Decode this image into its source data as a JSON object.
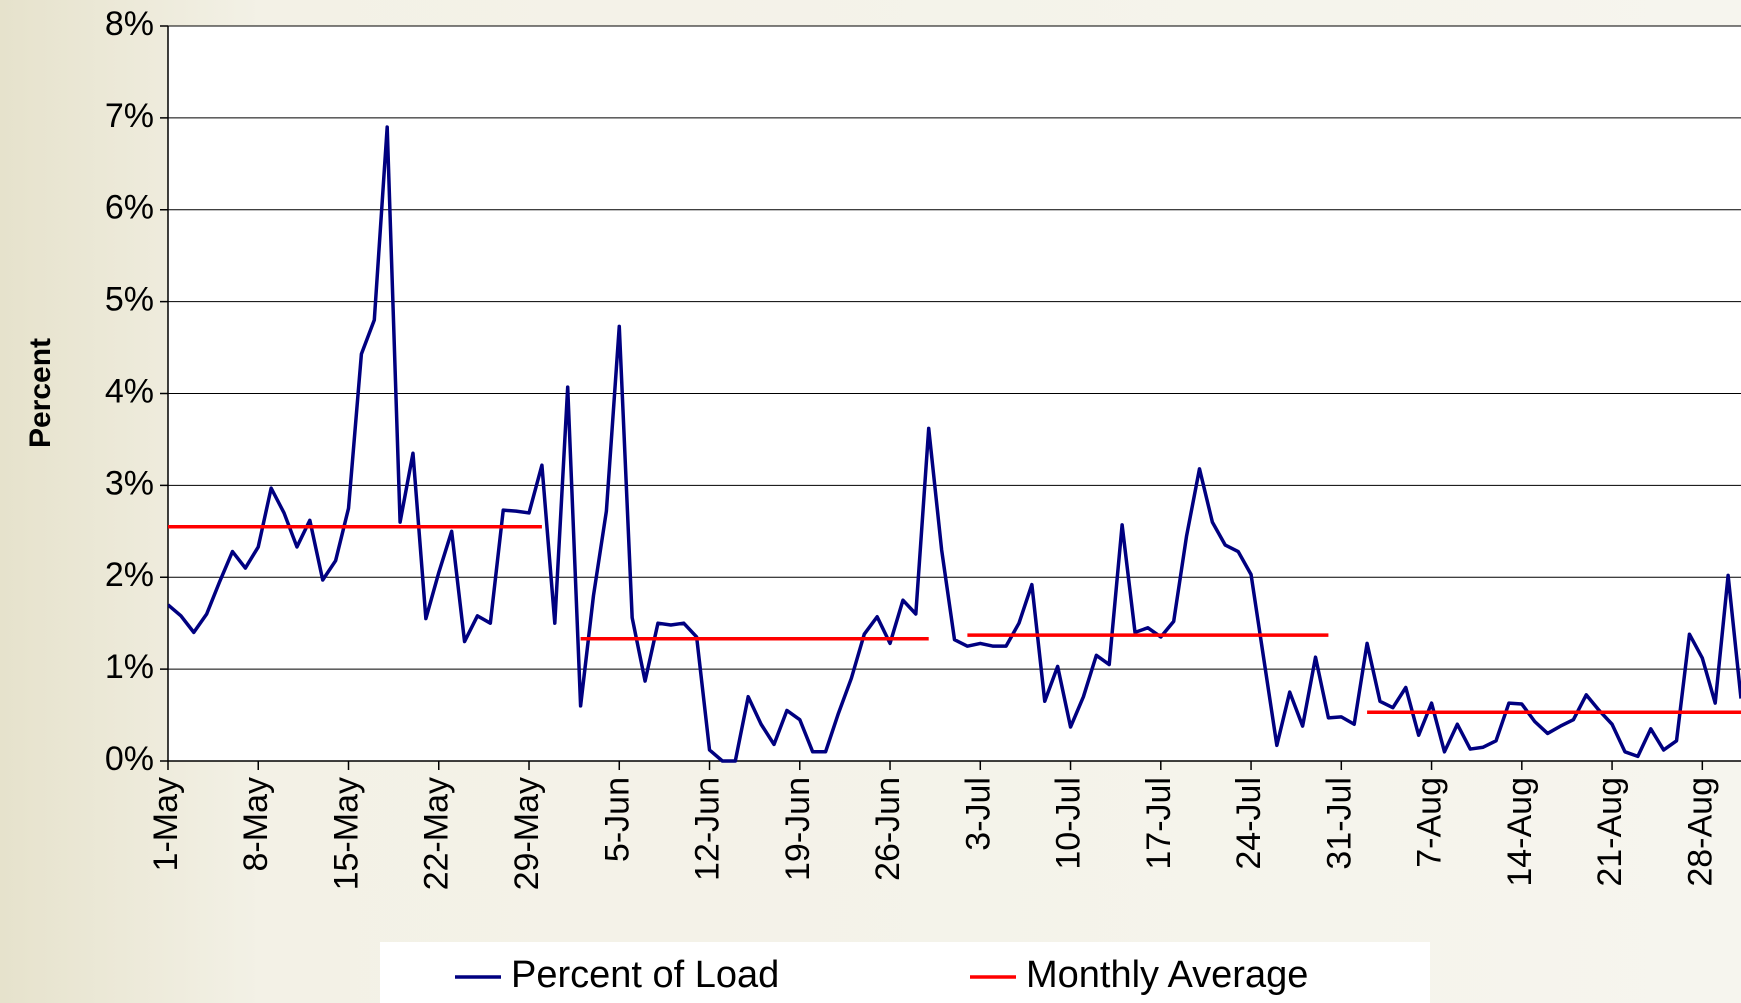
{
  "chart_data": {
    "type": "line",
    "y_label": "Percent",
    "categories": [
      "1-May",
      null,
      null,
      null,
      null,
      null,
      null,
      "8-May",
      null,
      null,
      null,
      null,
      null,
      null,
      "15-May",
      null,
      null,
      null,
      null,
      null,
      null,
      "22-May",
      null,
      null,
      null,
      null,
      null,
      null,
      "29-May",
      null,
      null,
      null,
      null,
      null,
      null,
      "5-Jun",
      null,
      null,
      null,
      null,
      null,
      null,
      "12-Jun",
      null,
      null,
      null,
      null,
      null,
      null,
      "19-Jun",
      null,
      null,
      null,
      null,
      null,
      null,
      "26-Jun",
      null,
      null,
      null,
      null,
      null,
      null,
      "3-Jul",
      null,
      null,
      null,
      null,
      null,
      null,
      "10-Jul",
      null,
      null,
      null,
      null,
      null,
      null,
      "17-Jul",
      null,
      null,
      null,
      null,
      null,
      null,
      "24-Jul",
      null,
      null,
      null,
      null,
      null,
      null,
      "31-Jul",
      null,
      null,
      null,
      null,
      null,
      null,
      "7-Aug",
      null,
      null,
      null,
      null,
      null,
      null,
      "14-Aug",
      null,
      null,
      null,
      null,
      null,
      null,
      "21-Aug",
      null,
      null,
      null,
      null,
      null,
      null,
      "28-Aug",
      null,
      null,
      null
    ],
    "series": [
      {
        "name": "Percent of Load",
        "color": "#000080",
        "values": [
          1.7,
          1.58,
          1.4,
          1.6,
          1.95,
          2.28,
          2.1,
          2.33,
          2.97,
          2.7,
          2.33,
          2.62,
          1.97,
          2.18,
          2.75,
          4.43,
          4.8,
          6.9,
          2.6,
          3.35,
          1.55,
          2.05,
          2.5,
          1.3,
          1.58,
          1.5,
          2.73,
          2.72,
          2.7,
          3.22,
          1.5,
          4.07,
          0.6,
          1.8,
          2.72,
          4.73,
          1.56,
          0.87,
          1.5,
          1.48,
          1.5,
          1.35,
          0.12,
          0,
          0,
          0.7,
          0.4,
          0.18,
          0.55,
          0.45,
          0.1,
          0.1,
          0.52,
          0.9,
          1.38,
          1.57,
          1.28,
          1.75,
          1.6,
          3.62,
          2.3,
          1.32,
          1.25,
          1.28,
          1.25,
          1.25,
          1.5,
          1.92,
          0.65,
          1.03,
          0.37,
          0.7,
          1.15,
          1.05,
          2.57,
          1.4,
          1.45,
          1.35,
          1.52,
          2.45,
          3.18,
          2.6,
          2.35,
          2.28,
          2.03,
          1.1,
          0.17,
          0.75,
          0.38,
          1.13,
          0.47,
          0.48,
          0.4,
          1.28,
          0.65,
          0.58,
          0.8,
          0.28,
          0.63,
          0.1,
          0.4,
          0.13,
          0.15,
          0.22,
          0.63,
          0.62,
          0.43,
          0.3,
          0.38,
          0.45,
          0.72,
          0.55,
          0.4,
          0.1,
          0.05,
          0.35,
          0.12,
          0.22,
          1.38,
          1.12,
          0.63,
          2.02,
          0.68
        ]
      },
      {
        "name": "Monthly Average",
        "color": "#ff0000",
        "values": [
          2.55,
          2.55,
          2.55,
          2.55,
          2.55,
          2.55,
          2.55,
          2.55,
          2.55,
          2.55,
          2.55,
          2.55,
          2.55,
          2.55,
          2.55,
          2.55,
          2.55,
          2.55,
          2.55,
          2.55,
          2.55,
          2.55,
          2.55,
          2.55,
          2.55,
          2.55,
          2.55,
          2.55,
          2.55,
          2.55,
          null,
          null,
          1.33,
          1.33,
          1.33,
          1.33,
          1.33,
          1.33,
          1.33,
          1.33,
          1.33,
          1.33,
          1.33,
          1.33,
          1.33,
          1.33,
          1.33,
          1.33,
          1.33,
          1.33,
          1.33,
          1.33,
          1.33,
          1.33,
          1.33,
          1.33,
          1.33,
          1.33,
          1.33,
          1.33,
          null,
          null,
          1.37,
          1.37,
          1.37,
          1.37,
          1.37,
          1.37,
          1.37,
          1.37,
          1.37,
          1.37,
          1.37,
          1.37,
          1.37,
          1.37,
          1.37,
          1.37,
          1.37,
          1.37,
          1.37,
          1.37,
          1.37,
          1.37,
          1.37,
          1.37,
          1.37,
          1.37,
          1.37,
          1.37,
          1.37,
          null,
          null,
          0.53,
          0.53,
          0.53,
          0.53,
          0.53,
          0.53,
          0.53,
          0.53,
          0.53,
          0.53,
          0.53,
          0.53,
          0.53,
          0.53,
          0.53,
          0.53,
          0.53,
          0.53,
          0.53,
          0.53,
          0.53,
          0.53,
          0.53,
          0.53,
          0.53,
          0.53,
          0.53,
          0.53,
          0.53,
          0.53
        ]
      }
    ],
    "ylim": [
      0,
      8
    ],
    "yticks": [
      {
        "value": 0,
        "label": "0%"
      },
      {
        "value": 1,
        "label": "1%"
      },
      {
        "value": 2,
        "label": "2%"
      },
      {
        "value": 3,
        "label": "3%"
      },
      {
        "value": 4,
        "label": "4%"
      },
      {
        "value": 5,
        "label": "5%"
      },
      {
        "value": 6,
        "label": "6%"
      },
      {
        "value": 7,
        "label": "7%"
      },
      {
        "value": 8,
        "label": "8%"
      }
    ],
    "grid": true,
    "legend": "bottom"
  }
}
